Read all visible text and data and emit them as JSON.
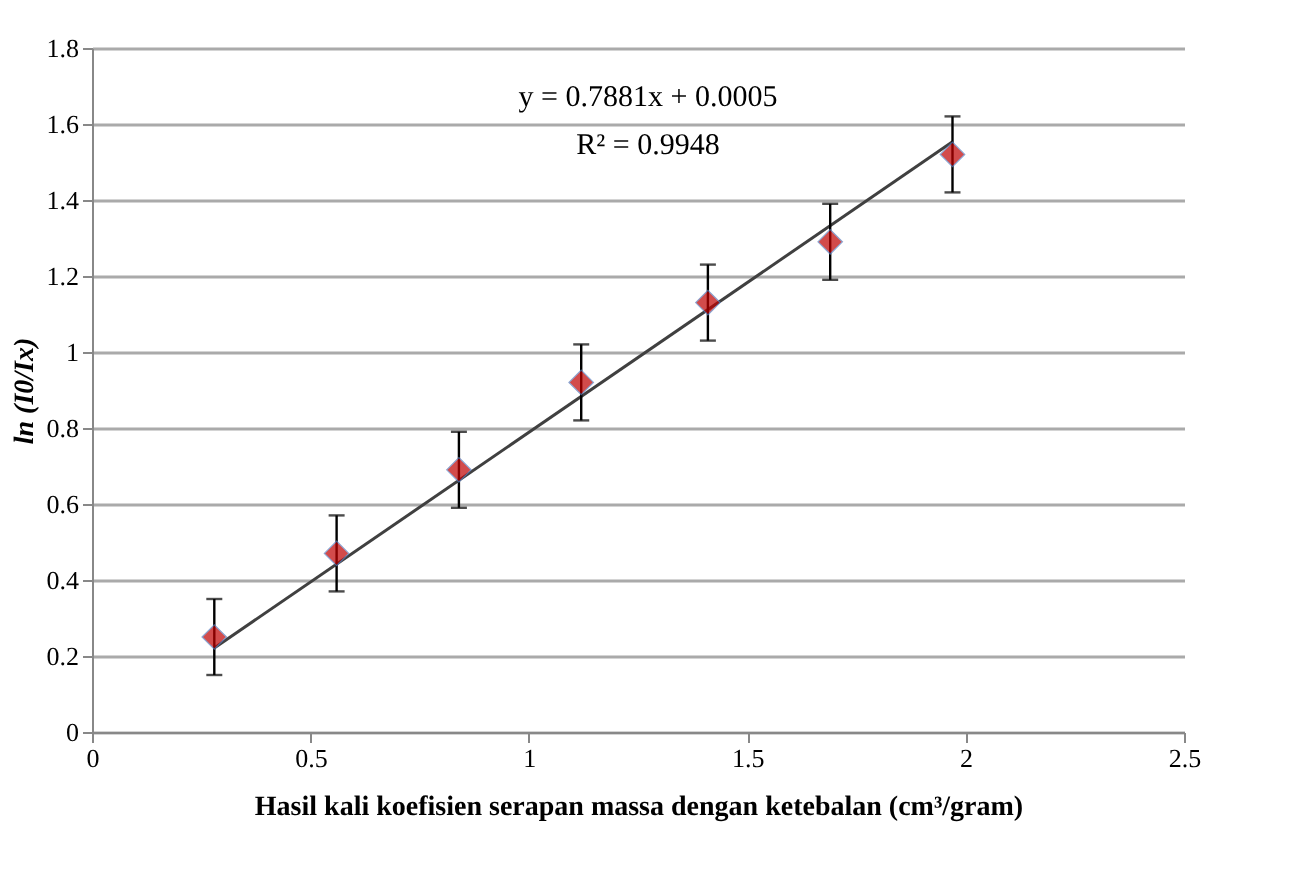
{
  "chart_data": {
    "type": "scatter",
    "xlabel": "Hasil kali koefisien serapan massa dengan ketebalan (cm³/gram)",
    "ylabel": "ln (I0/Ix)",
    "annotations": [
      "y = 0.7881x + 0.0005",
      "R² = 0.9948"
    ],
    "xlim": [
      0,
      2.5
    ],
    "xticks": [
      0,
      0.5,
      1,
      1.5,
      2,
      2.5
    ],
    "ylim": [
      0,
      1.8
    ],
    "yticks": [
      0,
      0.2,
      0.4,
      0.6,
      0.8,
      1,
      1.2,
      1.4,
      1.6,
      1.8
    ],
    "grid": "y",
    "marker": "diamond",
    "series": [
      {
        "type": "scatter",
        "color": "#c00000",
        "x": [
          0.28,
          0.56,
          0.84,
          1.12,
          1.41,
          1.69,
          1.97
        ],
        "values": [
          0.25,
          0.47,
          0.69,
          0.92,
          1.13,
          1.29,
          1.52
        ],
        "errors": [
          0.1,
          0.1,
          0.1,
          0.1,
          0.1,
          0.1,
          0.1
        ]
      },
      {
        "type": "line",
        "color": "#404040",
        "line_style": "solid",
        "marker": "none",
        "x": [
          0.28,
          1.97
        ],
        "values": [
          0.221,
          1.553
        ]
      }
    ]
  }
}
